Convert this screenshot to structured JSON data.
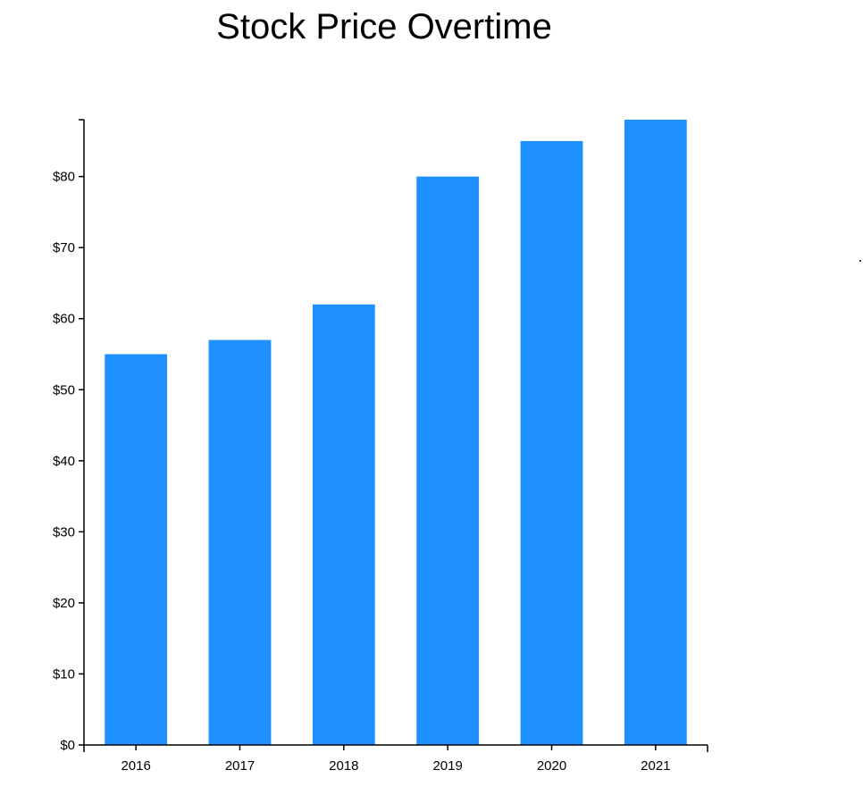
{
  "chart_data": {
    "type": "bar",
    "title": "Stock Price Overtime",
    "categories": [
      "2016",
      "2017",
      "2018",
      "2019",
      "2020",
      "2021"
    ],
    "values": [
      55,
      57,
      62,
      80,
      85,
      88
    ],
    "ylim": [
      0,
      88
    ],
    "yticks": [
      0,
      10,
      20,
      30,
      40,
      50,
      60,
      70,
      80
    ],
    "ytick_labels": [
      "$0",
      "$10",
      "$20",
      "$30",
      "$40",
      "$50",
      "$60",
      "$70",
      "$80"
    ],
    "bar_color": "#1e90ff",
    "grid": false,
    "legend": "none"
  }
}
